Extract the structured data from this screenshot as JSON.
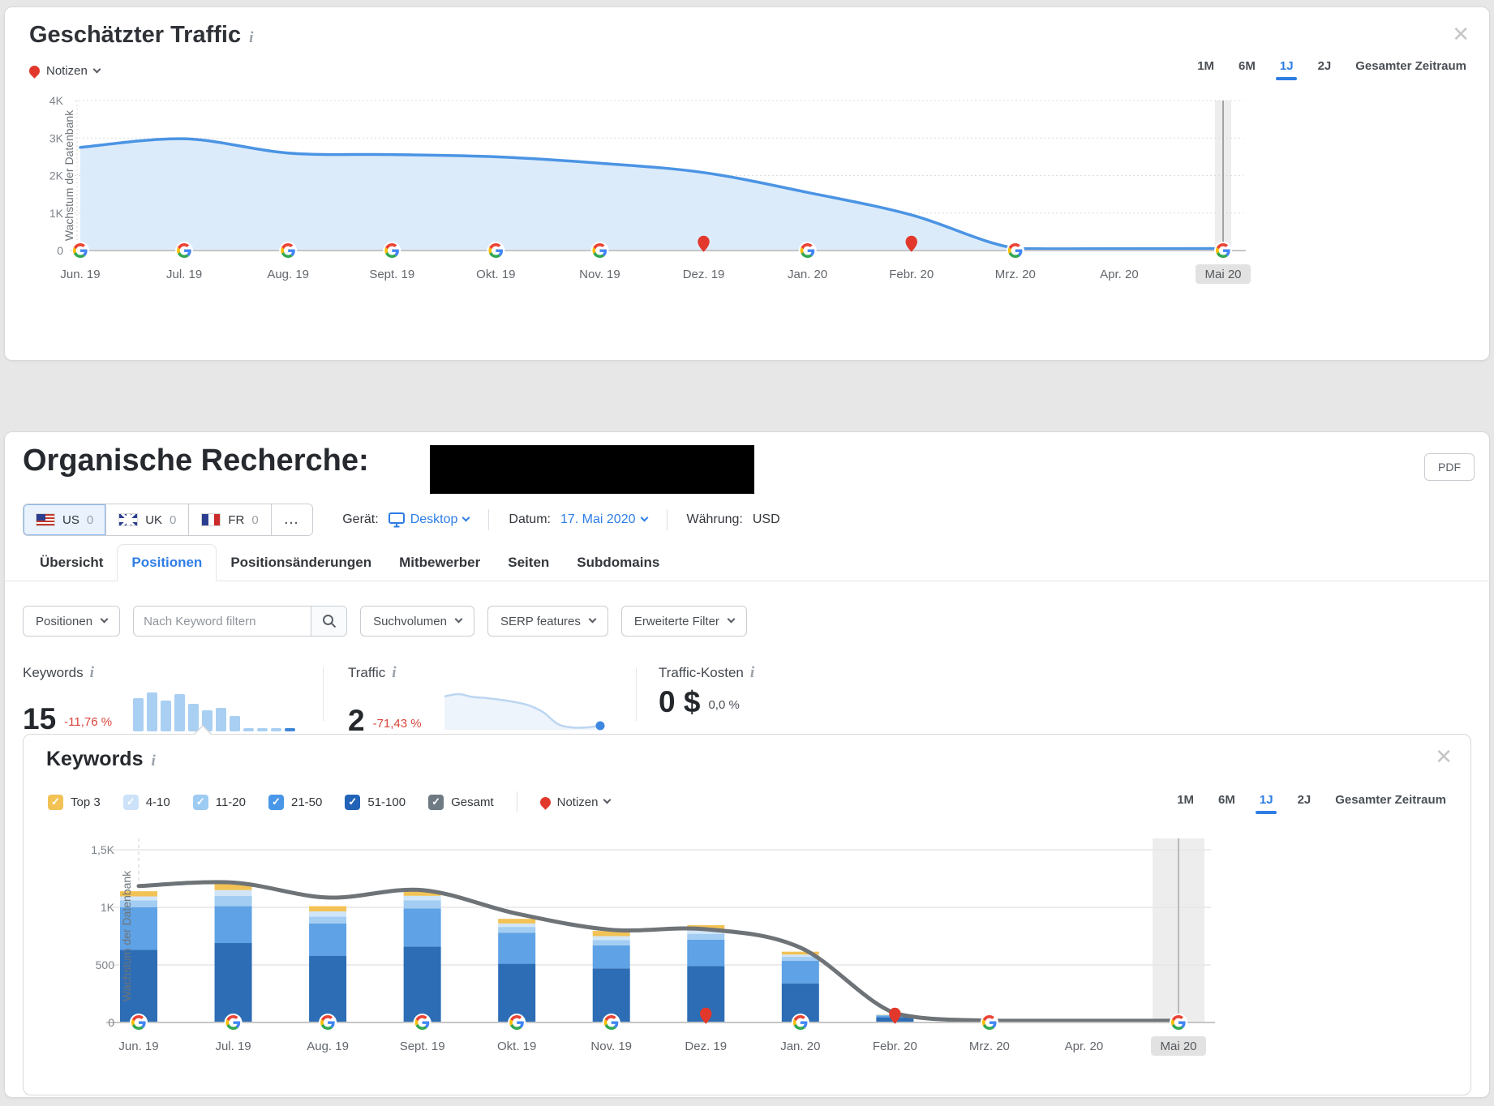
{
  "colors": {
    "accent_blue": "#2e7de5",
    "negative_red": "#d8453c",
    "note_pin_red": "#e2382c",
    "area_line": "#4b94e4",
    "area_fill": "#dcebfa",
    "gesamt_line": "#6e7377",
    "highlight_band": "#ededed"
  },
  "traffic_card": {
    "title": "Geschätzter Traffic",
    "notes_label": "Notizen",
    "ranges": [
      "1M",
      "6M",
      "1J",
      "2J",
      "Gesamter Zeitraum"
    ],
    "active_range": "1J"
  },
  "organic": {
    "title": "Organische Recherche:",
    "pdf_label": "PDF",
    "countries": [
      {
        "code": "US",
        "count": "0"
      },
      {
        "code": "UK",
        "count": "0"
      },
      {
        "code": "FR",
        "count": "0"
      }
    ],
    "more_countries_label": "...",
    "device_label": "Gerät:",
    "device_value": "Desktop",
    "date_label": "Datum:",
    "date_value": "17. Mai 2020",
    "currency_label": "Währung:",
    "currency_value": "USD",
    "tabs": [
      "Übersicht",
      "Positionen",
      "Positionsänderungen",
      "Mitbewerber",
      "Seiten",
      "Subdomains"
    ],
    "active_tab": "Positionen",
    "filters": {
      "positions_label": "Positionen",
      "keyword_placeholder": "Nach Keyword filtern",
      "volume_label": "Suchvolumen",
      "serp_label": "SERP features",
      "advanced_label": "Erweiterte Filter"
    },
    "metrics": {
      "keywords": {
        "label": "Keywords",
        "value": "15",
        "delta": "-11,76 %"
      },
      "traffic": {
        "label": "Traffic",
        "value": "2",
        "delta": "-71,43 %"
      },
      "cost": {
        "label": "Traffic-Kosten",
        "value": "0 $",
        "delta": "0,0 %"
      }
    }
  },
  "keywords_panel": {
    "title": "Keywords",
    "notes_label": "Notizen",
    "ranges": [
      "1M",
      "6M",
      "1J",
      "2J",
      "Gesamter Zeitraum"
    ],
    "active_range": "1J",
    "legend": [
      {
        "label": "Top 3",
        "color": "#f2c255"
      },
      {
        "label": "4-10",
        "color": "#cbe2f8"
      },
      {
        "label": "11-20",
        "color": "#9dcbf2"
      },
      {
        "label": "21-50",
        "color": "#4a97e8"
      },
      {
        "label": "51-100",
        "color": "#2263b8"
      },
      {
        "label": "Gesamt",
        "color": "#6e7a84"
      }
    ]
  },
  "chart_data": [
    {
      "id": "estimated-traffic",
      "type": "area",
      "title": "Geschätzter Traffic",
      "ylabel": "Wachstum der Datenbank",
      "ylim": [
        0,
        4000
      ],
      "yticks": [
        {
          "v": 0,
          "label": "0"
        },
        {
          "v": 1000,
          "label": "1K"
        },
        {
          "v": 2000,
          "label": "2K"
        },
        {
          "v": 3000,
          "label": "3K"
        },
        {
          "v": 4000,
          "label": "4K"
        }
      ],
      "categories": [
        "Jun. 19",
        "Jul. 19",
        "Aug. 19",
        "Sept. 19",
        "Okt. 19",
        "Nov. 19",
        "Dez. 19",
        "Jan. 20",
        "Febr. 20",
        "Mrz. 20",
        "Apr. 20",
        "Mai 20"
      ],
      "values": [
        2750,
        2980,
        2600,
        2560,
        2500,
        2330,
        2080,
        1550,
        950,
        60,
        50,
        55
      ],
      "markers": [
        "google",
        "google",
        "google",
        "google",
        "google",
        "google",
        "note",
        "google",
        "note",
        "google",
        "none",
        "google"
      ],
      "highlight_category": "Mai 20",
      "grid": true,
      "legend_position": "none"
    },
    {
      "id": "keywords-by-position",
      "type": "bar",
      "subtype": "stacked-bar-with-line",
      "title": "Keywords",
      "ylabel": "Wachstum der Datenbank",
      "ylim": [
        0,
        1500
      ],
      "yticks": [
        {
          "v": 0,
          "label": "0"
        },
        {
          "v": 500,
          "label": "500"
        },
        {
          "v": 1000,
          "label": "1K"
        },
        {
          "v": 1500,
          "label": "1,5K"
        }
      ],
      "categories": [
        "Jun. 19",
        "Jul. 19",
        "Aug. 19",
        "Sept. 19",
        "Okt. 19",
        "Nov. 19",
        "Dez. 19",
        "Jan. 20",
        "Febr. 20",
        "Mrz. 20",
        "Apr. 20",
        "Mai 20"
      ],
      "series": [
        {
          "name": "51-100",
          "color": "#2d6db5",
          "values": [
            630,
            690,
            580,
            660,
            510,
            470,
            490,
            340,
            45,
            0,
            0,
            0
          ]
        },
        {
          "name": "21-50",
          "color": "#5fa2e5",
          "values": [
            370,
            320,
            280,
            330,
            270,
            200,
            230,
            195,
            15,
            0,
            0,
            0
          ]
        },
        {
          "name": "11-20",
          "color": "#a3cdf2",
          "values": [
            60,
            90,
            60,
            70,
            50,
            45,
            50,
            35,
            5,
            0,
            0,
            0
          ]
        },
        {
          "name": "4-10",
          "color": "#d0e5f8",
          "values": [
            35,
            50,
            45,
            40,
            30,
            35,
            30,
            20,
            3,
            0,
            0,
            0
          ]
        },
        {
          "name": "Top 3",
          "color": "#f2c255",
          "values": [
            45,
            55,
            45,
            45,
            40,
            45,
            45,
            25,
            2,
            0,
            0,
            0
          ]
        }
      ],
      "line": {
        "name": "Gesamt",
        "color": "#6e7377",
        "values": [
          1185,
          1215,
          1085,
          1150,
          945,
          805,
          810,
          650,
          80,
          15,
          15,
          15
        ]
      },
      "markers": [
        "google",
        "google",
        "google",
        "google",
        "google",
        "google",
        "note",
        "google",
        "note",
        "google",
        "none",
        "google"
      ],
      "highlight_category": "Mai 20",
      "start_line_category": "Jun. 19",
      "grid": true,
      "legend_position": "top-left"
    },
    {
      "id": "keywords-minibar",
      "type": "bar",
      "values": [
        17,
        20,
        16,
        19,
        14,
        11,
        12,
        8,
        0,
        0,
        0,
        0
      ]
    },
    {
      "id": "traffic-sparkline",
      "type": "line",
      "values": [
        58,
        62,
        57,
        55,
        52,
        48,
        42,
        30,
        10,
        4,
        4,
        7
      ]
    }
  ]
}
